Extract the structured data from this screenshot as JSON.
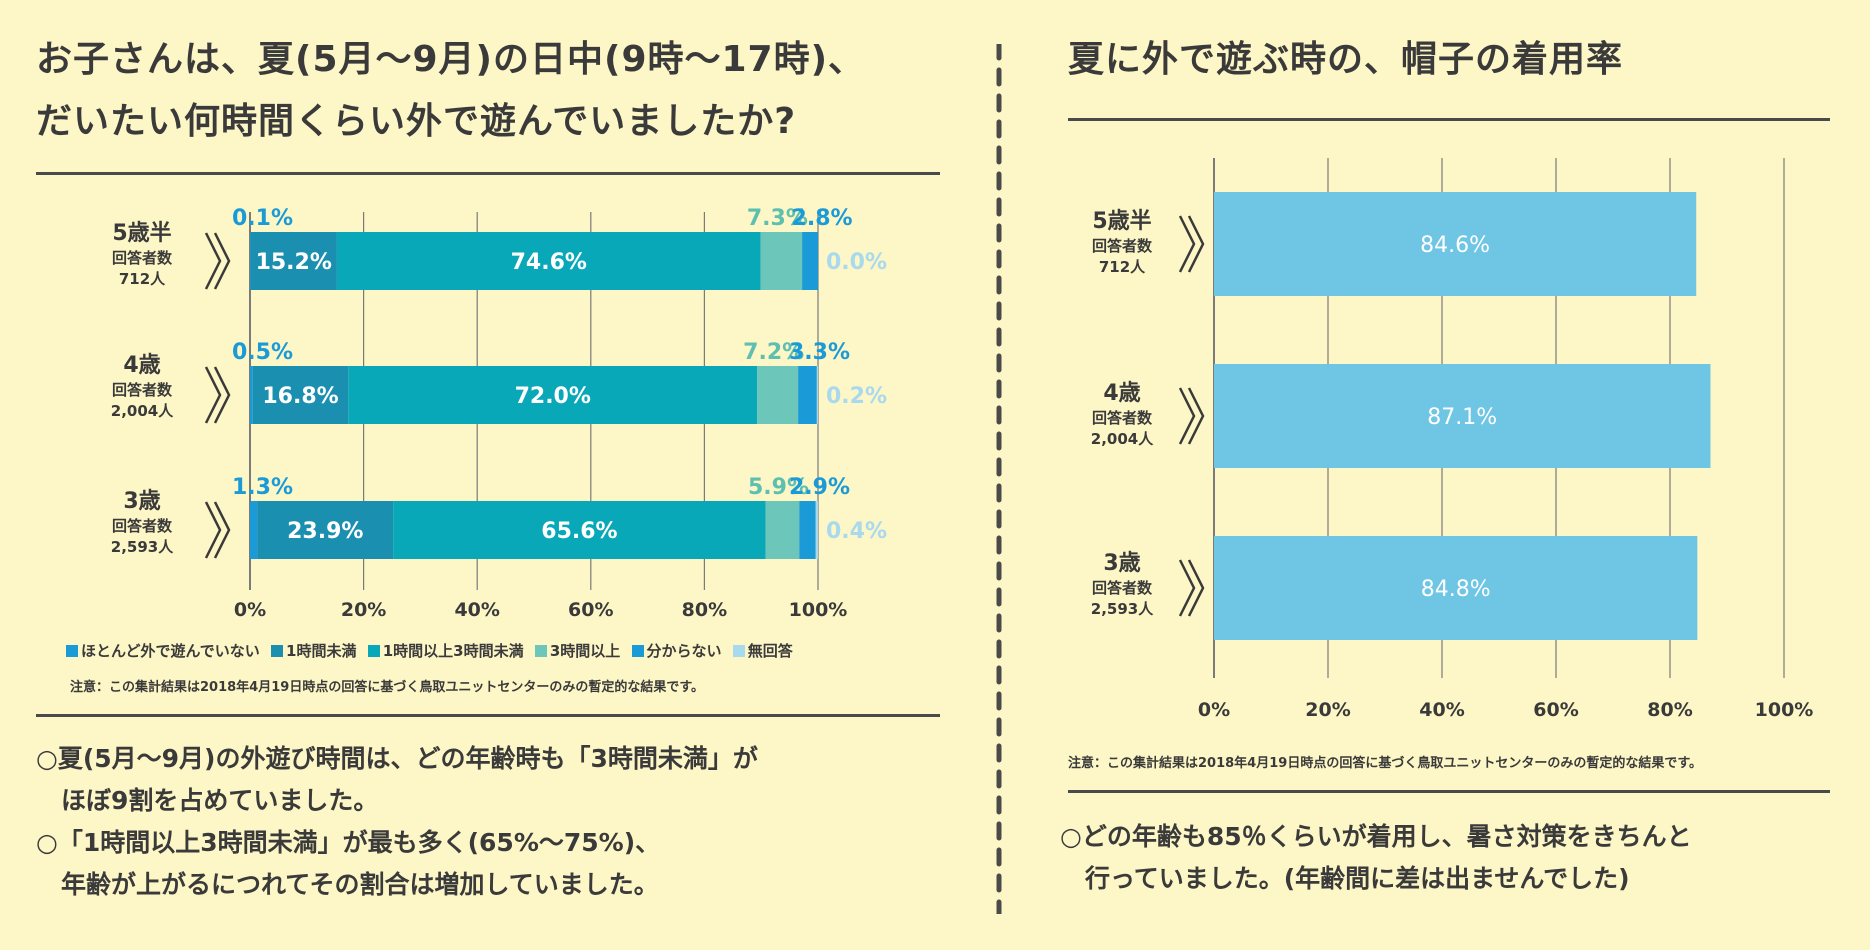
{
  "left": {
    "title_line1": "お子さんは、夏(5月～9月)の日中(9時～17時)、",
    "title_line2": "だいたい何時間くらい外で遊んでいましたか?",
    "groups": [
      {
        "age": "5歳半",
        "respondents_label": "回答者数",
        "count": "712人"
      },
      {
        "age": "4歳",
        "respondents_label": "回答者数",
        "count": "2,004人"
      },
      {
        "age": "3歳",
        "respondents_label": "回答者数",
        "count": "2,593人"
      }
    ],
    "legend": [
      {
        "label": "ほとんど外で遊んでいない",
        "color": "#1a9bd7"
      },
      {
        "label": "1時間未満",
        "color": "#1b8fb0"
      },
      {
        "label": "1時間以上3時間未満",
        "color": "#08a8b8"
      },
      {
        "label": "3時間以上",
        "color": "#6cc6ba"
      },
      {
        "label": "分からない",
        "color": "#1a9bd7"
      },
      {
        "label": "無回答",
        "color": "#a9d9ee"
      }
    ],
    "note": "注意：この集計結果は2018年4月19日時点の回答に基づく鳥取ユニットセンターのみの暫定的な結果です。",
    "summary": [
      "○夏(5月～9月)の外遊び時間は、どの年齢時も「3時間未満」が",
      "　ほぼ9割を占めていました。",
      "○「1時間以上3時間未満」が最も多く(65%～75%)、",
      "　年齢が上がるにつれてその割合は増加していました。"
    ]
  },
  "right": {
    "title": "夏に外で遊ぶ時の、帽子の着用率",
    "groups": [
      {
        "age": "5歳半",
        "respondents_label": "回答者数",
        "count": "712人"
      },
      {
        "age": "4歳",
        "respondents_label": "回答者数",
        "count": "2,004人"
      },
      {
        "age": "3歳",
        "respondents_label": "回答者数",
        "count": "2,593人"
      }
    ],
    "note": "注意：この集計結果は2018年4月19日時点の回答に基づく鳥取ユニットセンターのみの暫定的な結果です。",
    "summary": [
      "○どの年齢も85％くらいが着用し、暑さ対策をきちんと",
      "　行っていました。(年齢間に差は出ませんでした)"
    ]
  },
  "chart_data": [
    {
      "type": "bar",
      "orientation": "horizontal",
      "stacked": true,
      "categories": [
        "5歳半",
        "4歳",
        "3歳"
      ],
      "series": [
        {
          "name": "ほとんど外で遊んでいない",
          "values": [
            0.1,
            0.5,
            1.3
          ],
          "labels": [
            "0.1%",
            "0.5%",
            "1.3%"
          ],
          "color": "#1a9bd7",
          "label_color": "#1a9bd7"
        },
        {
          "name": "1時間未満",
          "values": [
            15.2,
            16.8,
            23.9
          ],
          "labels": [
            "15.2%",
            "16.8%",
            "23.9%"
          ],
          "color": "#1b8fb0",
          "label_color": "#ffffff"
        },
        {
          "name": "1時間以上3時間未満",
          "values": [
            74.6,
            72.0,
            65.6
          ],
          "labels": [
            "74.6%",
            "72.0%",
            "65.6%"
          ],
          "color": "#08a8b8",
          "label_color": "#ffffff"
        },
        {
          "name": "3時間以上",
          "values": [
            7.3,
            7.2,
            5.9
          ],
          "labels": [
            "7.3%",
            "7.2%",
            "5.9%"
          ],
          "color": "#6cc6ba",
          "label_color": "#5cbfb0"
        },
        {
          "name": "分からない",
          "values": [
            2.8,
            3.3,
            2.9
          ],
          "labels": [
            "2.8%",
            "3.3%",
            "2.9%"
          ],
          "color": "#1a9bd7",
          "label_color": "#1a9bd7"
        },
        {
          "name": "無回答",
          "values": [
            0.0,
            0.2,
            0.4
          ],
          "labels": [
            "0.0%",
            "0.2%",
            "0.4%"
          ],
          "color": "#a9d9ee",
          "label_color": "#a9d9ee"
        }
      ],
      "xticks": [
        "0%",
        "20%",
        "40%",
        "60%",
        "80%",
        "100%"
      ],
      "xlim": [
        0,
        100
      ],
      "grid": true
    },
    {
      "type": "bar",
      "orientation": "horizontal",
      "categories": [
        "5歳半",
        "4歳",
        "3歳"
      ],
      "values": [
        84.6,
        87.1,
        84.8
      ],
      "labels": [
        "84.6%",
        "87.1%",
        "84.8%"
      ],
      "color": "#6ec6e4",
      "xticks": [
        "0%",
        "20%",
        "40%",
        "60%",
        "80%",
        "100%"
      ],
      "xlim": [
        0,
        100
      ],
      "grid": true
    }
  ]
}
